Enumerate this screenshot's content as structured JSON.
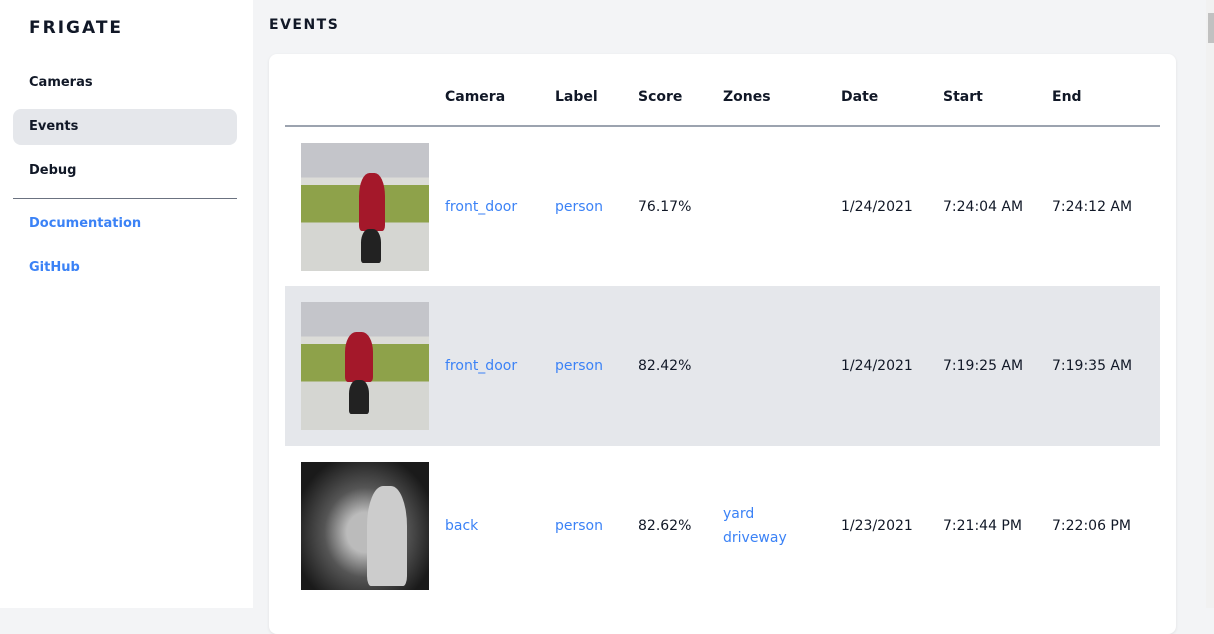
{
  "sidebar": {
    "brand": "FRIGATE",
    "items": [
      {
        "label": "Cameras"
      },
      {
        "label": "Events",
        "active": true
      },
      {
        "label": "Debug"
      }
    ],
    "links": [
      {
        "label": "Documentation"
      },
      {
        "label": "GitHub"
      }
    ]
  },
  "main": {
    "title": "EVENTS",
    "columns": [
      "",
      "Camera",
      "Label",
      "Score",
      "Zones",
      "Date",
      "Start",
      "End"
    ],
    "rows": [
      {
        "camera": "front_door",
        "label": "person",
        "score": "76.17%",
        "zones": [
          "",
          ""
        ],
        "date": "1/24/2021",
        "start": "7:24:04 AM",
        "end": "7:24:12 AM"
      },
      {
        "camera": "front_door",
        "label": "person",
        "score": "82.42%",
        "zones": [
          "",
          ""
        ],
        "date": "1/24/2021",
        "start": "7:19:25 AM",
        "end": "7:19:35 AM"
      },
      {
        "camera": "back",
        "label": "person",
        "score": "82.62%",
        "zones": [
          "yard",
          "driveway"
        ],
        "date": "1/23/2021",
        "start": "7:21:44 PM",
        "end": "7:22:06 PM"
      }
    ]
  },
  "colors": {
    "accent": "#3b82f6",
    "active_bg": "#e5e7eb"
  }
}
